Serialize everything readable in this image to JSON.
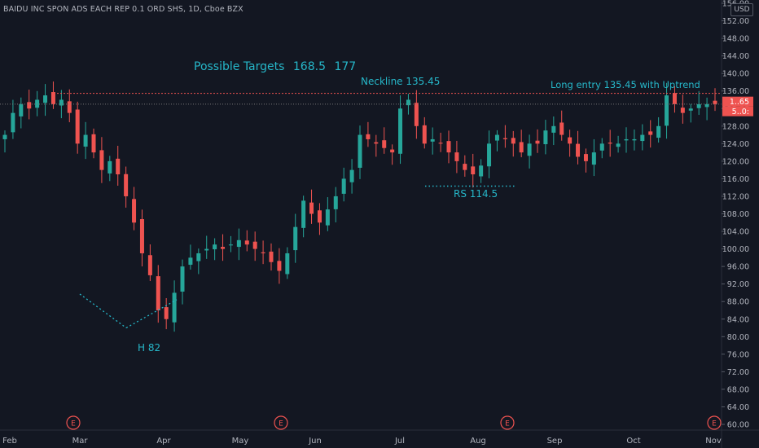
{
  "symbol_title": "BAIDU INC SPON ADS EACH REP 0.1 ORD SHS, 1D, Cboe BZX",
  "currency": "USD",
  "annotations": {
    "targets_label": "Possible Targets",
    "target1": "168.5",
    "target2": "177",
    "neckline": "Neckline 135.45",
    "long_entry": "Long entry 135.45 with Uptrend",
    "rs": "RS 114.5",
    "h": "H 82"
  },
  "price_badges": [
    "1..65",
    "5..0:"
  ],
  "earnings_marker": "E",
  "colors": {
    "up": "#26a69a",
    "down": "#ef5350",
    "annotation": "#26b7c9",
    "neckline": "#ef5350",
    "background": "#131722"
  },
  "chart_data": {
    "type": "candlestick",
    "title": "BAIDU INC SPON ADS EACH REP 0.1 ORD SHS, 1D, Cboe BZX",
    "x_labels": [
      "Feb",
      "Mar",
      "Apr",
      "May",
      "Jun",
      "Jul",
      "Aug",
      "Sep",
      "Oct",
      "Nov"
    ],
    "y_ticks": [
      60,
      64,
      68,
      72,
      76,
      80,
      84,
      88,
      92,
      96,
      100,
      104,
      108,
      112,
      116,
      120,
      124,
      128,
      132,
      136,
      140,
      144,
      148,
      152,
      156
    ],
    "ylim": [
      59,
      157
    ],
    "neckline": 135.45,
    "support_rs": 114.5,
    "head_low": 82,
    "earnings_months": [
      "Mar",
      "May",
      "Aug",
      "Nov"
    ],
    "grid": false,
    "closes": [
      126,
      131,
      133,
      132,
      134,
      135,
      133,
      134,
      131,
      124,
      126,
      122,
      118,
      120,
      117,
      112,
      106,
      99,
      94,
      86,
      84,
      90,
      96,
      98,
      99,
      100,
      101,
      100,
      101,
      102,
      101,
      100,
      99,
      97,
      95,
      99,
      105,
      111,
      108,
      106,
      109,
      112,
      116,
      118,
      126,
      125,
      124,
      123,
      122,
      132,
      134,
      128,
      124,
      125,
      124,
      122,
      120,
      118,
      117,
      119,
      124,
      126,
      125,
      124,
      122,
      124,
      124,
      127,
      128,
      126,
      124,
      121,
      120,
      122,
      124,
      124,
      124,
      125,
      125,
      126,
      126,
      128,
      135,
      133,
      131,
      132,
      133,
      133,
      133
    ]
  }
}
